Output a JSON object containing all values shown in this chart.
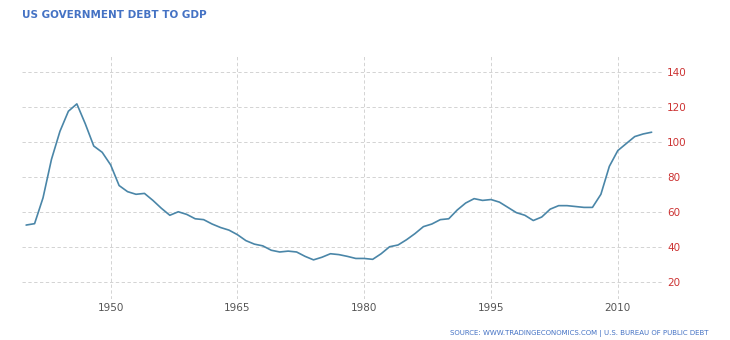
{
  "title": "US GOVERNMENT DEBT TO GDP",
  "source": "SOURCE: WWW.TRADINGECONOMICS.COM | U.S. BUREAU OF PUBLIC DEBT",
  "title_color": "#4472c4",
  "source_color": "#4472c4",
  "line_color": "#4a86a8",
  "background_color": "#ffffff",
  "grid_color": "#cccccc",
  "ylabel_right_color": "#cc3333",
  "tick_color": "#555555",
  "ylim": [
    10,
    150
  ],
  "yticks": [
    20,
    40,
    60,
    80,
    100,
    120,
    140
  ],
  "xlim": [
    1939.5,
    2015.5
  ],
  "xticks": [
    1950,
    1965,
    1980,
    1995,
    2010
  ],
  "years": [
    1940,
    1941,
    1942,
    1943,
    1944,
    1945,
    1946,
    1947,
    1948,
    1949,
    1950,
    1951,
    1952,
    1953,
    1954,
    1955,
    1956,
    1957,
    1958,
    1959,
    1960,
    1961,
    1962,
    1963,
    1964,
    1965,
    1966,
    1967,
    1968,
    1969,
    1970,
    1971,
    1972,
    1973,
    1974,
    1975,
    1976,
    1977,
    1978,
    1979,
    1980,
    1981,
    1982,
    1983,
    1984,
    1985,
    1986,
    1987,
    1988,
    1989,
    1990,
    1991,
    1992,
    1993,
    1994,
    1995,
    1996,
    1997,
    1998,
    1999,
    2000,
    2001,
    2002,
    2003,
    2004,
    2005,
    2006,
    2007,
    2008,
    2009,
    2010,
    2011,
    2012,
    2013,
    2014
  ],
  "values": [
    52.4,
    53.2,
    68.0,
    90.0,
    106.0,
    117.5,
    121.7,
    110.3,
    97.6,
    94.0,
    86.8,
    75.0,
    71.5,
    70.0,
    70.5,
    66.5,
    62.0,
    58.0,
    60.0,
    58.5,
    56.0,
    55.5,
    53.0,
    51.0,
    49.5,
    46.9,
    43.5,
    41.5,
    40.5,
    38.0,
    37.0,
    37.5,
    37.0,
    34.5,
    32.5,
    34.0,
    36.0,
    35.5,
    34.5,
    33.3,
    33.3,
    32.8,
    36.0,
    40.0,
    41.0,
    44.0,
    47.5,
    51.5,
    53.0,
    55.5,
    56.0,
    61.0,
    65.0,
    67.5,
    66.5,
    67.0,
    65.5,
    62.5,
    59.5,
    58.0,
    55.0,
    57.0,
    61.5,
    63.5,
    63.5,
    63.0,
    62.5,
    62.5,
    70.0,
    86.0,
    95.0,
    99.0,
    103.0,
    104.5,
    105.5
  ]
}
